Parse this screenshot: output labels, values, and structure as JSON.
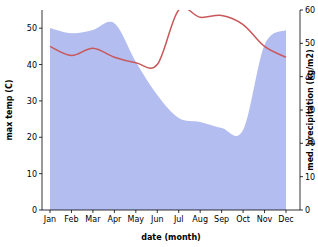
{
  "chart_data": {
    "type": "line",
    "xlabel": "date (month)",
    "ylabel": "max temp (C)",
    "y2label": "med. precipitation (kg/m2)",
    "categories": [
      "Jan",
      "Feb",
      "Mar",
      "Apr",
      "May",
      "Jun",
      "Jul",
      "Aug",
      "Sep",
      "Oct",
      "Nov",
      "Dec"
    ],
    "ylim": [
      0,
      55
    ],
    "yticks": [
      0,
      10,
      20,
      30,
      40,
      50
    ],
    "y2lim": [
      0,
      60
    ],
    "y2ticks": [
      0,
      10,
      20,
      30,
      40,
      50,
      60
    ],
    "series": [
      {
        "type": "area",
        "axis": "y2",
        "color": "#b3bdf0",
        "values": [
          54.6,
          53,
          54,
          56,
          44.5,
          34.5,
          27.6,
          26.4,
          24.6,
          24,
          49.5,
          54
        ]
      },
      {
        "type": "line",
        "axis": "y",
        "color": "#c8585a",
        "values": [
          45,
          42.5,
          44.5,
          42,
          40.5,
          40,
          55,
          53,
          53.5,
          51,
          45,
          42
        ]
      }
    ]
  }
}
